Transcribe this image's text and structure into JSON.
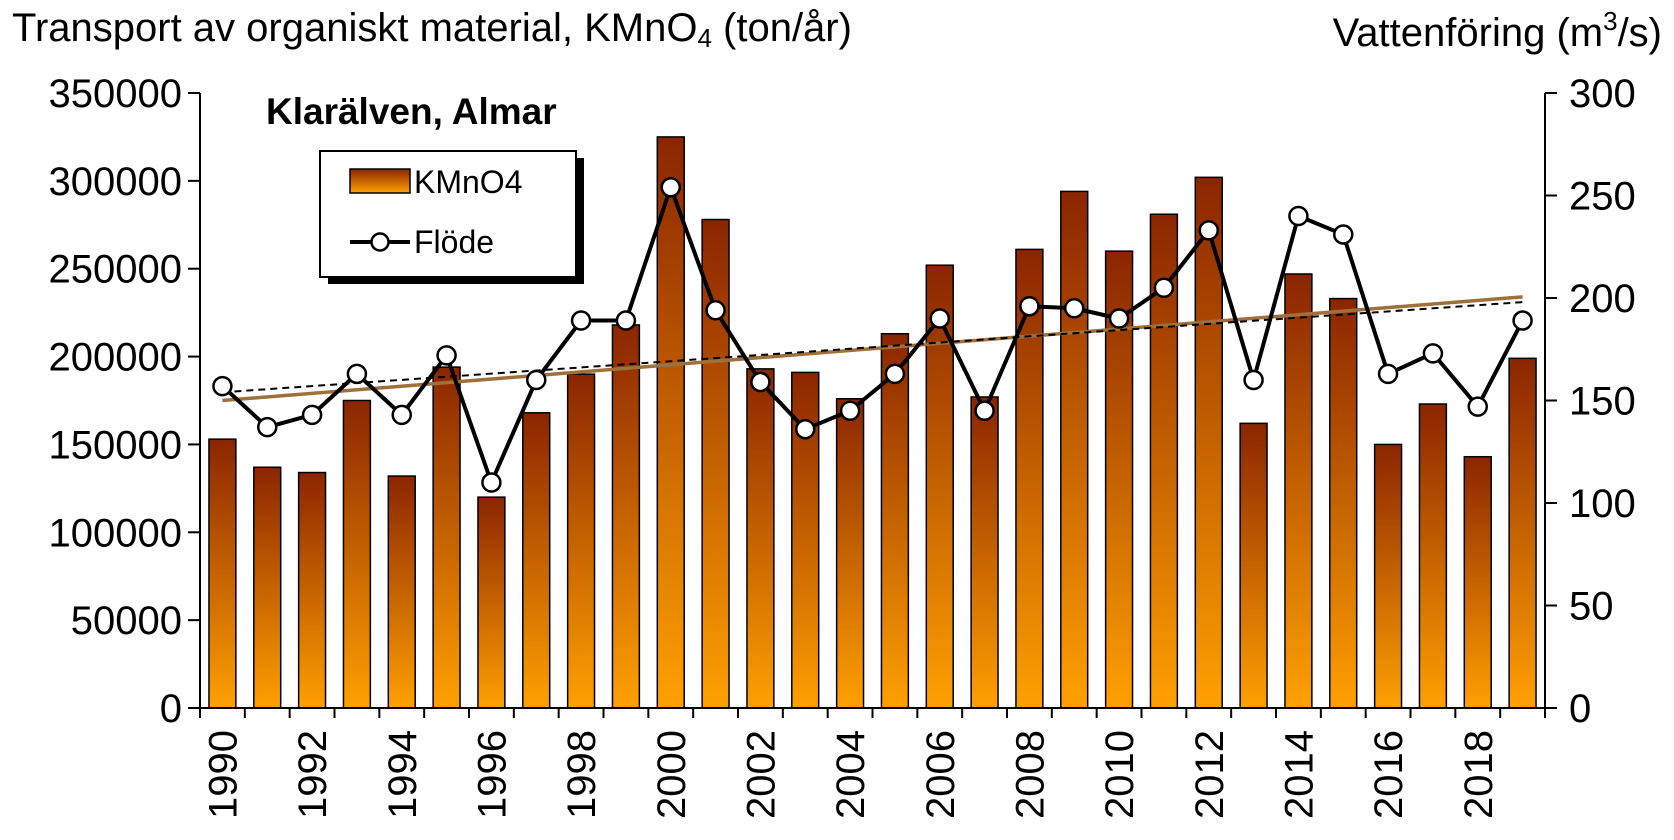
{
  "chart_data": {
    "type": "bar",
    "title": "Klarälven, Almar",
    "y_left_label": {
      "prefix": "Transport av organiskt material, KMnO",
      "sub": "4",
      "suffix": " (ton/år)"
    },
    "y_right_label": {
      "prefix": "Vattenföring (m",
      "sup": "3",
      "suffix": "/s)"
    },
    "x": [
      1990,
      1991,
      1992,
      1993,
      1994,
      1995,
      1996,
      1997,
      1998,
      1999,
      2000,
      2001,
      2002,
      2003,
      2004,
      2005,
      2006,
      2007,
      2008,
      2009,
      2010,
      2011,
      2012,
      2013,
      2014,
      2015,
      2016,
      2017,
      2018,
      2019
    ],
    "x_tick_labels": [
      "1990",
      "1992",
      "1994",
      "1996",
      "1998",
      "2000",
      "2002",
      "2004",
      "2006",
      "2008",
      "2010",
      "2012",
      "2014",
      "2016",
      "2018"
    ],
    "y_left_ticks": [
      "0",
      "50000",
      "100000",
      "150000",
      "200000",
      "250000",
      "300000",
      "350000"
    ],
    "y_right_ticks": [
      "0",
      "50",
      "100",
      "150",
      "200",
      "250",
      "300"
    ],
    "ylim_left": [
      0,
      350000
    ],
    "ylim_right": [
      0,
      300
    ],
    "grid": false,
    "legend_position": "top-left",
    "series": [
      {
        "name": "KMnO4",
        "type": "bar",
        "axis": "left",
        "color_top": "#8B2500",
        "color_bottom": "#FFA000",
        "values": [
          153000,
          137000,
          134000,
          175000,
          132000,
          194000,
          120000,
          168000,
          190000,
          218000,
          325000,
          278000,
          193000,
          191000,
          176000,
          213000,
          252000,
          177000,
          261000,
          294000,
          260000,
          281000,
          302000,
          162000,
          247000,
          233000,
          150000,
          173000,
          143000,
          199000
        ]
      },
      {
        "name": "Flöde",
        "type": "line",
        "axis": "right",
        "color": "#000000",
        "marker": "open-circle",
        "values": [
          157,
          137,
          143,
          163,
          143,
          172,
          110,
          160,
          189,
          189,
          254,
          194,
          159,
          136,
          145,
          163,
          190,
          145,
          196,
          195,
          190,
          205,
          233,
          160,
          240,
          231,
          163,
          173,
          147,
          189
        ]
      }
    ],
    "trendlines": [
      {
        "of": "KMnO4",
        "axis": "left",
        "color": "#A0703A",
        "style": "solid",
        "start": [
          1990,
          175000
        ],
        "end": [
          2019,
          234000
        ]
      },
      {
        "of": "Flöde",
        "axis": "right",
        "color": "#000000",
        "style": "dashed",
        "start": [
          1990,
          154
        ],
        "end": [
          2019,
          198
        ]
      }
    ]
  }
}
